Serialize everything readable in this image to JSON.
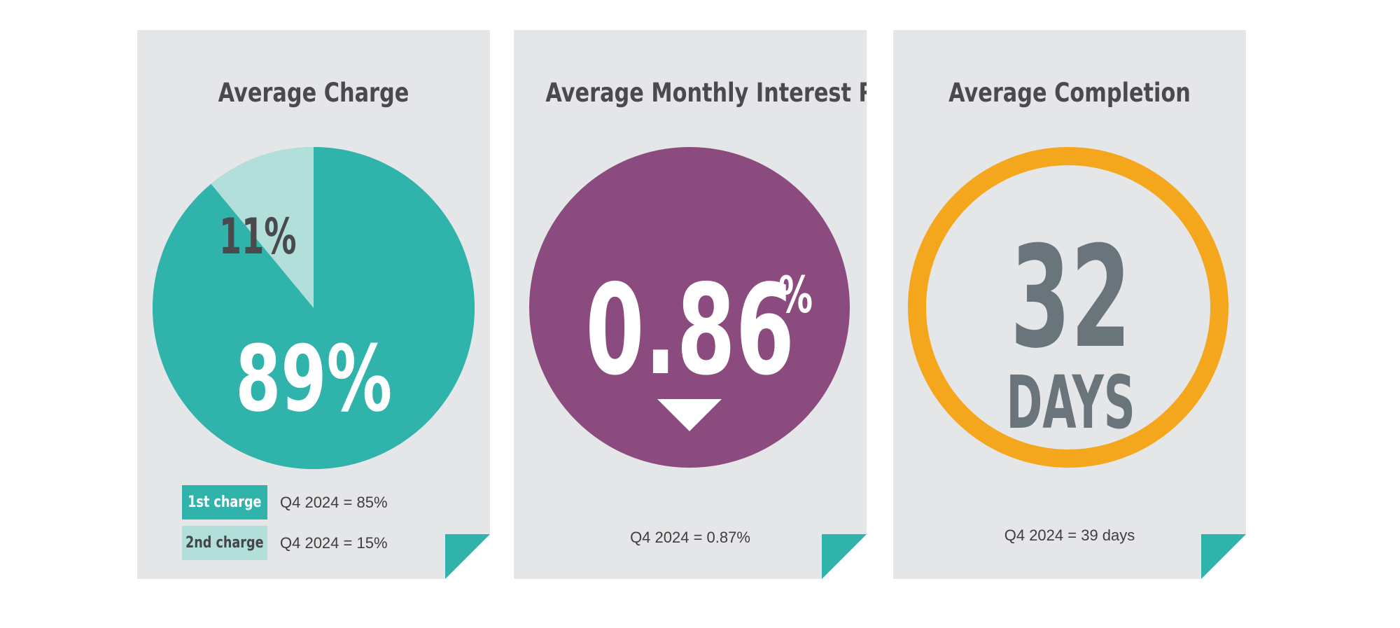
{
  "colors": {
    "card_bg": "#e5e6e8",
    "teal": "#2fb3ab",
    "teal_light": "#b3dfda",
    "purple": "#8c4b7f",
    "orange": "#f4a61d",
    "slate": "#6a757b",
    "title_text": "#4a4a4d"
  },
  "cards": {
    "charge": {
      "title": "Average Charge",
      "main_label": "89%",
      "secondary_label": "11%",
      "legend": [
        {
          "label": "1st charge",
          "note": "Q4 2024 = 85%"
        },
        {
          "label": "2nd charge",
          "note": "Q4 2024 = 15%"
        }
      ],
      "chart_data": {
        "type": "pie",
        "categories": [
          "1st charge",
          "2nd charge"
        ],
        "values": [
          89,
          11
        ],
        "title": "Average Charge"
      }
    },
    "rate": {
      "title": "Average Monthly Interest Rate",
      "value": "0.86",
      "unit": "%",
      "trend_icon": "down-triangle-icon",
      "note": "Q4 2024 = 0.87%"
    },
    "completion": {
      "title": "Average Completion",
      "number": "32",
      "unit": "DAYS",
      "note": "Q4 2024 = 39 days"
    }
  }
}
